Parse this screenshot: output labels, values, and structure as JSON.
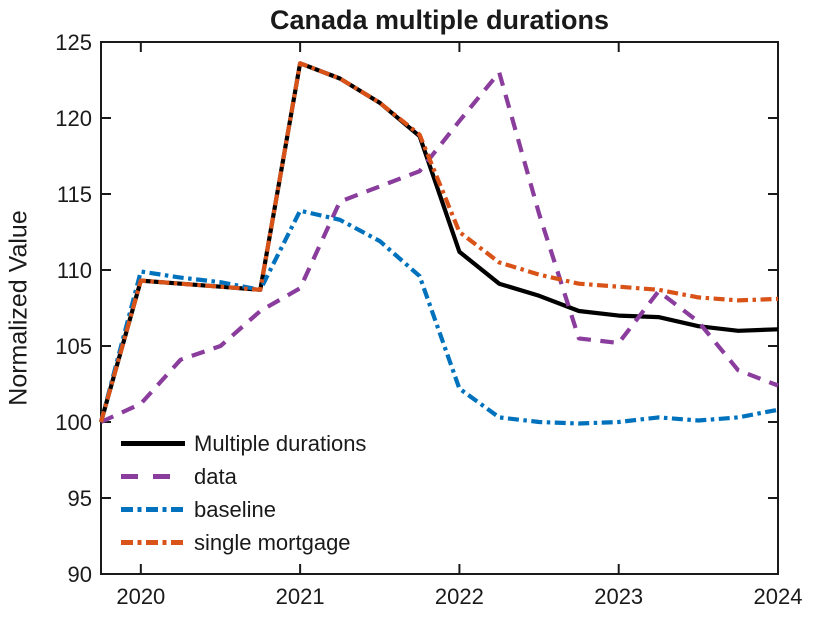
{
  "chart_data": {
    "type": "line",
    "title": "Canada multiple durations",
    "ylabel": "Normalized Value",
    "xlabel": "",
    "grid": false,
    "legend_position": "lower-left-inside",
    "axis_color": "#1a1a1a",
    "background_color": "#ffffff",
    "xlim": [
      2019.75,
      2024
    ],
    "ylim": [
      90,
      125
    ],
    "xticks": [
      2020,
      2021,
      2022,
      2023,
      2024
    ],
    "yticks": [
      90,
      95,
      100,
      105,
      110,
      115,
      120,
      125
    ],
    "x": [
      2019.75,
      2020.0,
      2020.25,
      2020.5,
      2020.75,
      2021.0,
      2021.25,
      2021.5,
      2021.75,
      2022.0,
      2022.25,
      2022.5,
      2022.75,
      2023.0,
      2023.25,
      2023.5,
      2023.75,
      2024.0
    ],
    "series": [
      {
        "name": "Multiple durations",
        "color": "#000000",
        "style": "solid",
        "values": [
          100,
          109.3,
          109.1,
          108.9,
          108.7,
          123.6,
          122.6,
          121.0,
          118.8,
          111.2,
          109.1,
          108.3,
          107.3,
          107.0,
          106.9,
          106.3,
          106.0,
          106.1
        ]
      },
      {
        "name": "data",
        "color": "#8A3D9C",
        "style": "dashed",
        "values": [
          100,
          101.2,
          104.1,
          105.0,
          107.3,
          108.8,
          114.5,
          115.5,
          116.5,
          119.8,
          123.0,
          113.7,
          105.5,
          105.2,
          108.6,
          106.6,
          103.4,
          102.4
        ]
      },
      {
        "name": "baseline",
        "color": "#0072BD",
        "style": "dashdot",
        "values": [
          100,
          109.9,
          109.5,
          109.2,
          108.7,
          113.9,
          113.3,
          111.9,
          109.6,
          102.2,
          100.3,
          100.0,
          99.9,
          100.0,
          100.3,
          100.1,
          100.3,
          100.8
        ]
      },
      {
        "name": "single mortgage",
        "color": "#D95319",
        "style": "dashdot",
        "values": [
          100,
          109.3,
          109.1,
          108.9,
          108.7,
          123.6,
          122.6,
          121.0,
          118.9,
          112.5,
          110.5,
          109.7,
          109.1,
          108.9,
          108.7,
          108.2,
          108.0,
          108.1
        ]
      }
    ]
  }
}
